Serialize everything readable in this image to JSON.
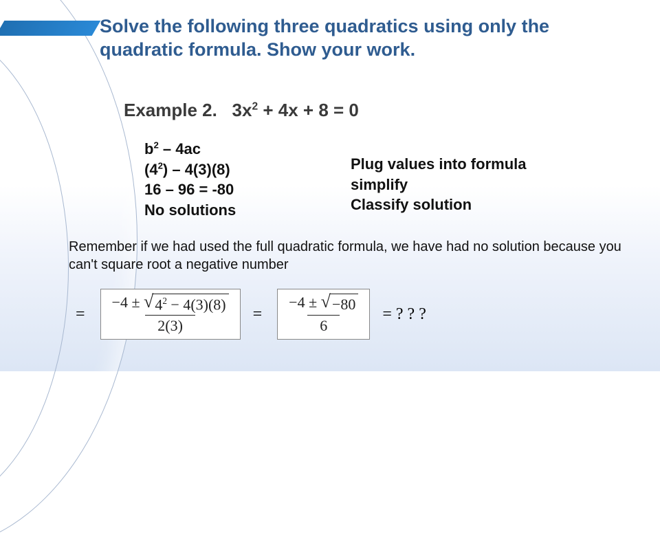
{
  "title": "Solve the following three quadratics using only the quadratic formula.  Show your work.",
  "example": {
    "label": "Example 2.",
    "equation_prefix": "3x",
    "equation_sup": "2",
    "equation_rest": " + 4x + 8 = 0"
  },
  "work": {
    "line1_pre": "b",
    "line1_sup": "2",
    "line1_rest": " – 4ac",
    "line2_pre": "(4",
    "line2_sup": "2",
    "line2_rest": ") – 4(3)(8)",
    "line3": "16 – 96 = -80",
    "line4": "No solutions"
  },
  "notes": {
    "line1": "Plug values into formula",
    "line2": "simplify",
    "line3": "Classify solution"
  },
  "remember": "Remember if we had used the full quadratic formula, we have had no solution because you can't square root a negative number",
  "formula": {
    "frac1_num_left": "−4 ± ",
    "frac1_radicand_pre": "4",
    "frac1_radicand_sup": "2",
    "frac1_radicand_rest": " − 4(3)(8)",
    "frac1_den": "2(3)",
    "frac2_num_left": "−4 ± ",
    "frac2_radicand": "−80",
    "frac2_den": "6",
    "result": "= ? ? ?"
  },
  "colors": {
    "title_color": "#2f5c90",
    "accent_bar": "#2a89d6",
    "bg_bottom": "#dce6f5"
  }
}
